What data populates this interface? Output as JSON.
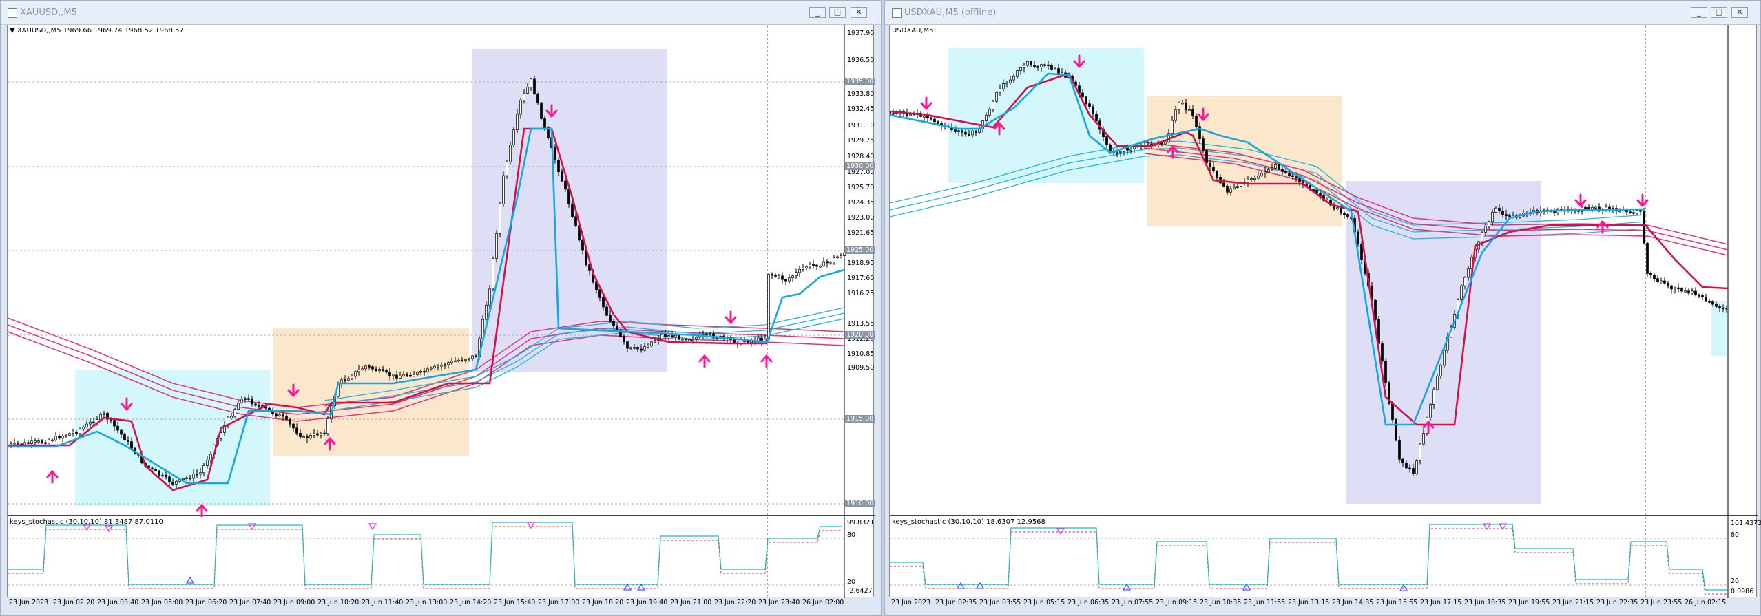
{
  "left": {
    "title": "XAUUSD,,M5",
    "info": "▼ XAUUSD,,M5  1969.66 1969.74 1968.52 1968.57",
    "stoch_label": "keys_stochastic (30,10,10) 81.3487 87.0110",
    "price_labels": [
      "1937.90",
      "1936.50",
      "1933.80",
      "1932.45",
      "1931.10",
      "1929.75",
      "1928.40",
      "1927.05",
      "1925.70",
      "1924.35",
      "1923.00",
      "1921.65",
      "1918.95",
      "1917.60",
      "1916.25",
      "1913.55",
      "1912.20",
      "1910.85",
      "1909.50"
    ],
    "highlight_labels": [
      "1935.00",
      "1930.00",
      "1925.00",
      "1920.00",
      "1915.00",
      "1910.00"
    ],
    "stoch_scale": [
      "99.8321",
      "80",
      "20",
      "-2.6427"
    ],
    "time_labels": [
      "23 Jun 2023",
      "23 Jun 02:20",
      "23 Jun 03:40",
      "23 Jun 05:00",
      "23 Jun 06:20",
      "23 Jun 07:40",
      "23 Jun 09:00",
      "23 Jun 10:20",
      "23 Jun 11:40",
      "23 Jun 13:00",
      "23 Jun 14:20",
      "23 Jun 15:40",
      "23 Jun 17:00",
      "23 Jun 18:20",
      "23 Jun 19:40",
      "23 Jun 21:00",
      "23 Jun 22:20",
      "23 Jun 23:40",
      "26 Jun 02:00"
    ]
  },
  "right": {
    "title": "USDXAU,M5 (offline)",
    "info": "USDXAU,M5",
    "stoch_label": "keys_stochastic (30,10,10) 18.6307 12.9568",
    "stoch_scale": [
      "101.4373",
      "80",
      "20",
      "0.0986"
    ],
    "time_labels": [
      "23 Jun 2023",
      "23 Jun 02:35",
      "23 Jun 03:55",
      "23 Jun 05:15",
      "23 Jun 06:35",
      "23 Jun 07:55",
      "23 Jun 09:15",
      "23 Jun 10:35",
      "23 Jun 11:55",
      "23 Jun 13:15",
      "23 Jun 14:35",
      "23 Jun 15:55",
      "23 Jun 17:15",
      "23 Jun 18:35",
      "23 Jun 19:55",
      "23 Jun 21:15",
      "23 Jun 22:35",
      "23 Jun 23:55",
      "26 Jun 02:15"
    ]
  },
  "buttons": {
    "minimize": "_",
    "restore": "□",
    "close": "✕"
  },
  "colors": {
    "red_line": "#d0114a",
    "cyan_line": "#15a8e0",
    "pink_band": "#e3347a",
    "arrow": "#ff1493",
    "box_cyan": "#d3f7fa",
    "box_orange": "#fbe8cc",
    "box_lav": "#dedef7"
  }
}
